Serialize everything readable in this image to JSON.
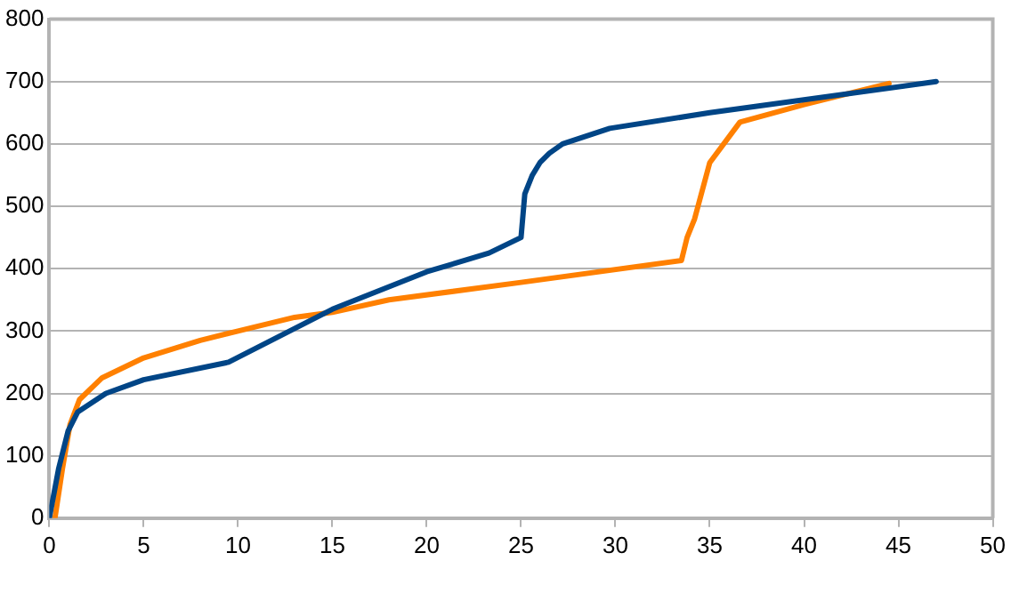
{
  "chart_data": {
    "type": "line",
    "xlim": [
      0,
      50
    ],
    "xticks": [
      0,
      5,
      10,
      15,
      20,
      25,
      30,
      35,
      40,
      45,
      50
    ],
    "ylim": [
      0,
      800
    ],
    "yticks": [
      0,
      100,
      200,
      300,
      400,
      500,
      600,
      700,
      800
    ],
    "grid": "y",
    "legend": false,
    "marker": "none",
    "line_style": "solid",
    "series": [
      {
        "color": "#004586",
        "x": [
          0,
          0.5,
          1,
          1.5,
          3,
          5,
          9.5,
          15,
          20,
          23.3,
          25,
          25.2,
          25.6,
          26,
          26.5,
          27.2,
          29.7,
          35,
          47
        ],
        "values": [
          0,
          80,
          140,
          170,
          200,
          222,
          250,
          335,
          395,
          425,
          450,
          520,
          550,
          570,
          585,
          600,
          625,
          650,
          700
        ]
      },
      {
        "color": "#ff8000",
        "x": [
          0.3,
          0.7,
          1.1,
          1.6,
          2.8,
          5,
          8,
          10,
          13,
          15,
          18,
          25,
          33.5,
          33.8,
          34.2,
          35,
          36.6,
          40,
          44.5
        ],
        "values": [
          0,
          80,
          150,
          190,
          225,
          257,
          285,
          300,
          322,
          330,
          350,
          378,
          413,
          450,
          480,
          570,
          635,
          663,
          697
        ]
      }
    ]
  }
}
